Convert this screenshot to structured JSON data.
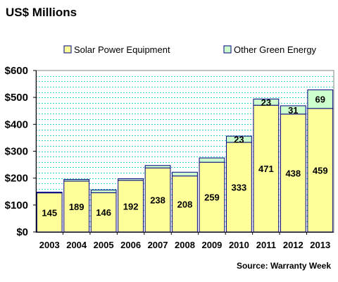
{
  "chart_data": {
    "type": "bar",
    "stacked": true,
    "title": "US$ Millions",
    "categories": [
      "2003",
      "2004",
      "2005",
      "2006",
      "2007",
      "2008",
      "2009",
      "2010",
      "2011",
      "2012",
      "2013"
    ],
    "series": [
      {
        "name": "Solar Power Equipment",
        "values": [
          145,
          189,
          146,
          192,
          238,
          208,
          259,
          333,
          471,
          438,
          459
        ],
        "color": "#ffff99",
        "show_labels": [
          true,
          true,
          true,
          true,
          true,
          true,
          true,
          true,
          true,
          true,
          true
        ]
      },
      {
        "name": "Other Green Energy",
        "values": [
          3,
          6,
          10,
          6,
          9,
          14,
          16,
          23,
          23,
          31,
          69
        ],
        "color": "#ccffcc",
        "show_labels": [
          false,
          false,
          false,
          false,
          false,
          false,
          false,
          true,
          true,
          true,
          true
        ]
      }
    ],
    "ylim": [
      0,
      600
    ],
    "yticks": [
      0,
      100,
      200,
      300,
      400,
      500,
      600
    ],
    "ytick_labels": [
      "$0",
      "$100",
      "$200",
      "$300",
      "$400",
      "$500",
      "$600"
    ],
    "grid_minor_step": 20,
    "grid_color": "#33cccc",
    "plot_background": "#ffffff",
    "bar_outline": "#000080",
    "legend_position": "top",
    "source": "Source: Warranty Week"
  }
}
